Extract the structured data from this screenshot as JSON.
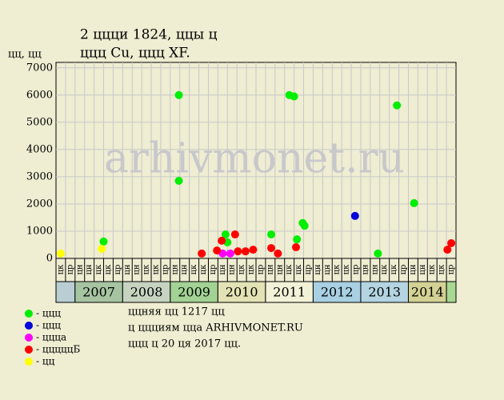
{
  "chart_data": {
    "type": "scatter",
    "title": [
      "2 ццци 1824, ццы ц",
      "ццц Cu, ццц XF."
    ],
    "y_label": "цц, цц",
    "watermark": "arhivmonet.ru",
    "xlim": [
      0,
      42
    ],
    "ylim": [
      0,
      7200
    ],
    "yticks": [
      0,
      1000,
      2000,
      3000,
      4000,
      5000,
      6000,
      7000
    ],
    "grid": true,
    "column_labels": [
      "цк",
      "цр",
      "цн",
      "цн",
      "цк",
      "цк",
      "цр",
      "цн",
      "цн",
      "цк",
      "цк",
      "цр",
      "цн",
      "цн",
      "цк",
      "цк",
      "цр",
      "цн",
      "цн",
      "цк",
      "цк",
      "цр",
      "цн",
      "цн",
      "цк",
      "цк",
      "цр",
      "цн",
      "цн",
      "цк",
      "цк",
      "цр",
      "цн",
      "цн",
      "цк",
      "цк",
      "цр",
      "цн",
      "цн",
      "цк",
      "цк",
      "цр"
    ],
    "year_bands": [
      {
        "label": null,
        "start": 0,
        "end": 2,
        "color": "#b9cdd2"
      },
      {
        "label": "2007",
        "start": 2,
        "end": 7,
        "color": "#a6c4a2"
      },
      {
        "label": "2008",
        "start": 7,
        "end": 12,
        "color": "#c6d3c0"
      },
      {
        "label": "2009",
        "start": 12,
        "end": 17,
        "color": "#a2d294"
      },
      {
        "label": "2010",
        "start": 17,
        "end": 22,
        "color": "#e2e2b4"
      },
      {
        "label": "2011",
        "start": 22,
        "end": 27,
        "color": "#f2f2d8"
      },
      {
        "label": "2012",
        "start": 27,
        "end": 32,
        "color": "#a8d0e2"
      },
      {
        "label": "2013",
        "start": 32,
        "end": 37,
        "color": "#b4d4e2"
      },
      {
        "label": "2014",
        "start": 37,
        "end": 41,
        "color": "#d4d294"
      },
      {
        "label": null,
        "start": 41,
        "end": 42,
        "color": "#a8d892"
      }
    ],
    "series": [
      {
        "name": "- ццц",
        "color": "#00ee00",
        "x": [
          5.0,
          12.9,
          12.9,
          17.8,
          18.0,
          22.6,
          24.5,
          25.0,
          25.3,
          25.9,
          26.1,
          33.8,
          35.8,
          37.6
        ],
        "values": [
          620,
          6000,
          2850,
          880,
          590,
          880,
          6000,
          5950,
          700,
          1300,
          1200,
          180,
          5620,
          2030
        ]
      },
      {
        "name": "- ццц",
        "color": "#0000dd",
        "x": [
          31.4
        ],
        "values": [
          1560
        ]
      },
      {
        "name": "- ццца",
        "color": "#ff00ff",
        "x": [
          17.5,
          18.3
        ],
        "values": [
          180,
          180
        ]
      },
      {
        "name": "- цццццБ",
        "color": "#ff0000",
        "x": [
          15.3,
          16.9,
          17.4,
          18.8,
          19.1,
          19.9,
          20.7,
          22.6,
          23.3,
          25.2,
          41.1,
          41.5
        ],
        "values": [
          180,
          290,
          650,
          880,
          260,
          260,
          320,
          380,
          180,
          410,
          320,
          560
        ]
      },
      {
        "name": "- цц",
        "color": "#ffff00",
        "x": [
          0.5,
          4.8
        ],
        "values": [
          180,
          350
        ]
      }
    ],
    "notes": [
      "ццняя цц 1217 цц",
      "ц ццциям цца ARHIVMONET.RU",
      "ццц ц 20 ця 2017 цц."
    ]
  }
}
